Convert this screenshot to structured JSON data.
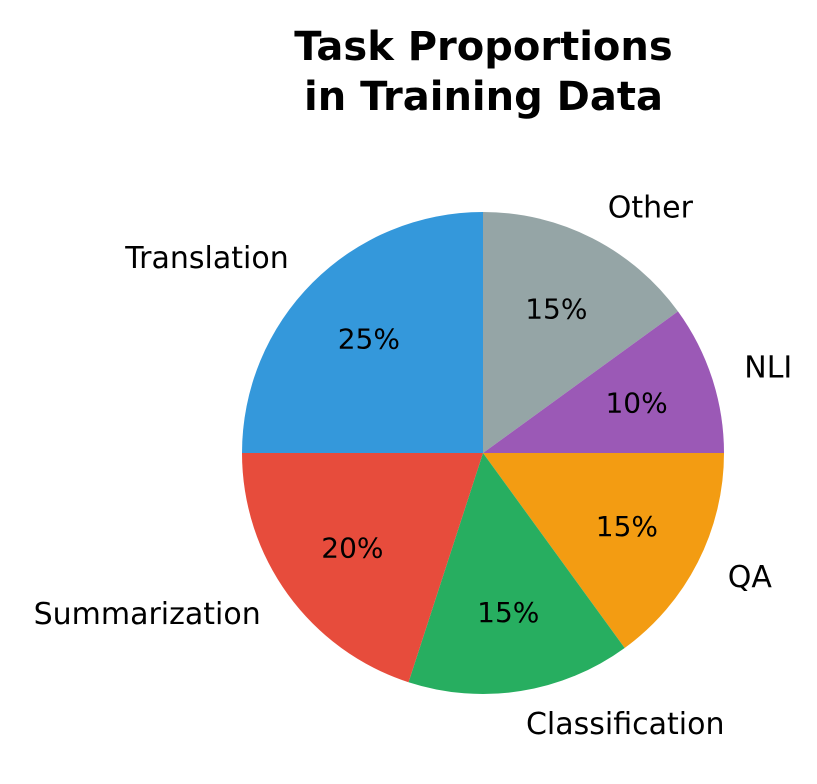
{
  "chart_data": {
    "type": "pie",
    "title_lines": [
      "Task Proportions",
      "in Training Data"
    ],
    "slices": [
      {
        "label": "Other",
        "value": 15,
        "pct_label": "15%",
        "color": "#95a5a6"
      },
      {
        "label": "NLI",
        "value": 10,
        "pct_label": "10%",
        "color": "#9b59b6"
      },
      {
        "label": "QA",
        "value": 15,
        "pct_label": "15%",
        "color": "#f39c12"
      },
      {
        "label": "Classification",
        "value": 15,
        "pct_label": "15%",
        "color": "#27ae60"
      },
      {
        "label": "Summarization",
        "value": 20,
        "pct_label": "20%",
        "color": "#e74c3c"
      },
      {
        "label": "Translation",
        "value": 25,
        "pct_label": "25%",
        "color": "#3498db"
      }
    ],
    "start_angle": "12 o'clock",
    "direction": "clockwise",
    "legend": "none"
  }
}
